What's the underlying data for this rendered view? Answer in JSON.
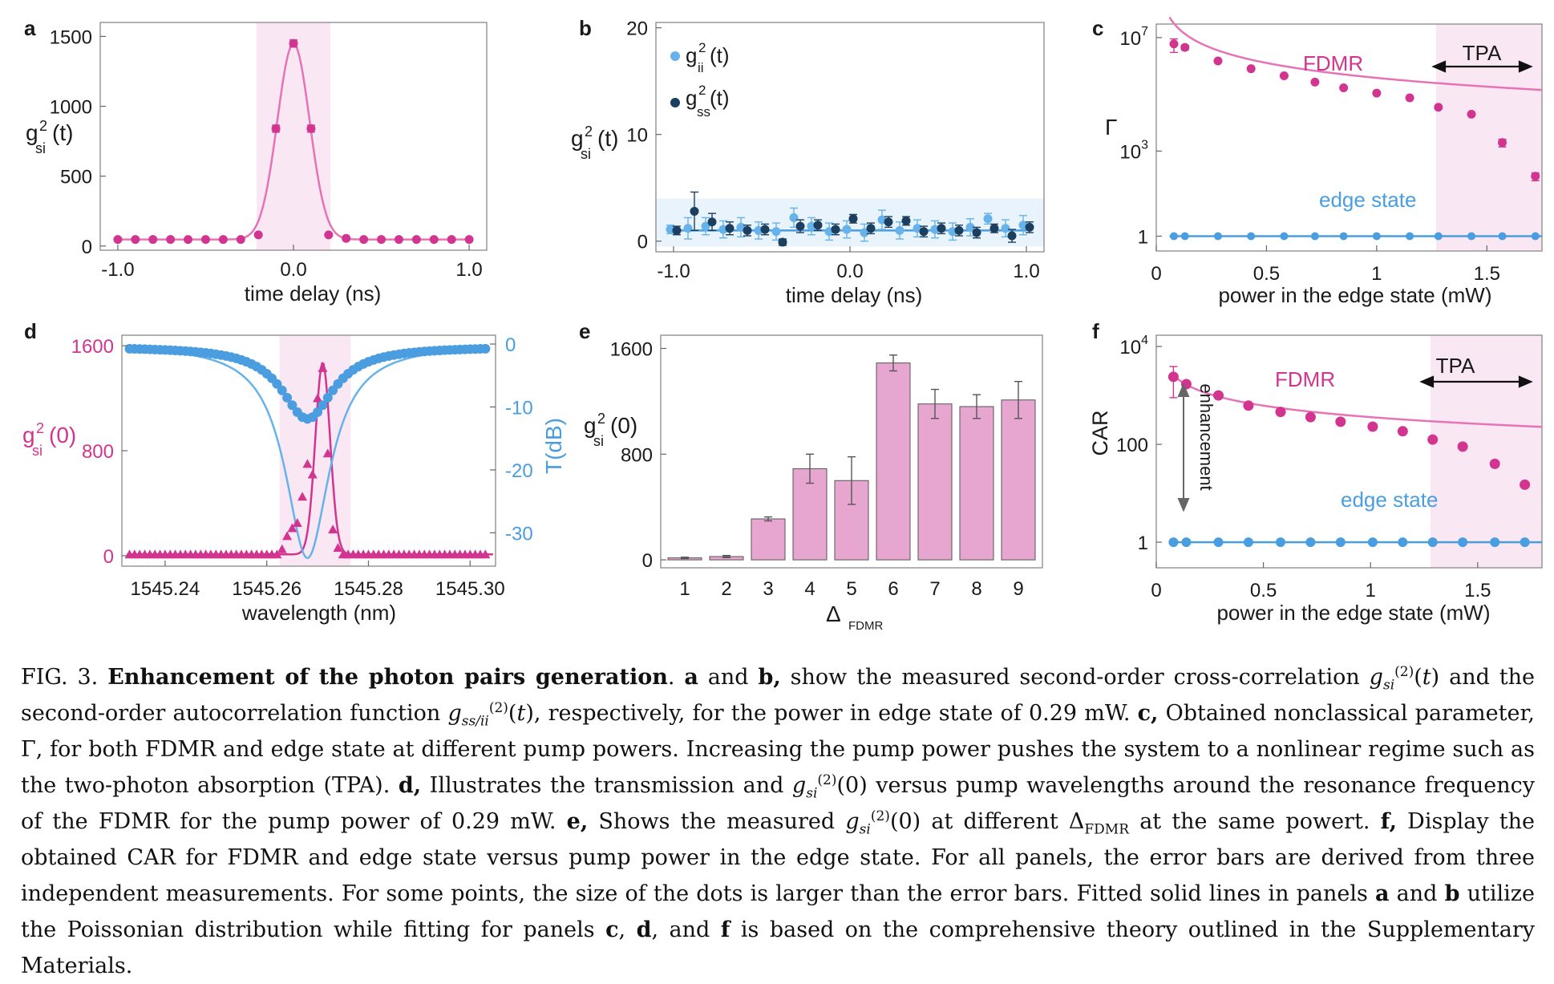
{
  "colors": {
    "magenta": "#d1358f",
    "magenta_light": "#e573b5",
    "blue": "#4a9ee0",
    "blue_light": "#66b2ea",
    "navy": "#1c3f5f",
    "band_pink": "#f9e7f3",
    "band_blue": "#e9f3fb",
    "bar_fill": "#e6a6cf"
  },
  "caption": {
    "fig_label": "FIG. 3.",
    "title": "Enhancement of the photon pairs generation",
    "text": ". a and b, show the measured second-order cross-correlation g_si^(2)(t) and the second-order autocorrelation function g_ss/ii^(2)(t), respectively, for the power in edge state of 0.29 mW. c, Obtained nonclassical parameter, Γ, for both FDMR and edge state at different pump powers. Increasing the pump power pushes the system to a nonlinear regime such as the two-photon absorption (TPA). d, Illustrates the transmission and g_si^(2)(0) versus pump wavelengths around the resonance frequency of the FDMR for the pump power of 0.29 mW. e, Shows the measured g_si^(2)(0) at different Δ_FDMR at the same powert. f, Display the obtained CAR for FDMR and edge state versus pump power in the edge state. For all panels, the error bars are derived from three independent measurements. For some points, the size of the dots is larger than the error bars. Fitted solid lines in panels a and b utilize the Poissonian distribution while fitting for panels c, d, and f is based on the comprehensive theory outlined in the Supplementary Materials."
  },
  "chart_data": [
    {
      "panel": "a",
      "type": "scatter",
      "xlabel": "time delay (ns)",
      "ylabel": "g_si^2(t)",
      "xlim": [
        -1.1,
        1.1
      ],
      "ylim": [
        -30,
        1600
      ],
      "xticks": [
        -1.0,
        0.0,
        1.0
      ],
      "xtick_labels": [
        "-1.0",
        "0.0",
        "1.0"
      ],
      "yticks": [
        0,
        500,
        1000,
        1500
      ],
      "ytick_labels": [
        "0",
        "500",
        "1000",
        "1500"
      ],
      "shaded_band": [
        -0.21,
        0.21
      ],
      "series": [
        {
          "x": [
            -1.0,
            -0.9,
            -0.8,
            -0.7,
            -0.6,
            -0.5,
            -0.4,
            -0.3,
            -0.2,
            -0.1,
            0.0,
            0.1,
            0.2,
            0.3,
            0.4,
            0.5,
            0.6,
            0.7,
            0.8,
            0.9,
            1.0
          ],
          "y": [
            47,
            47,
            47,
            47,
            47,
            47,
            47,
            47,
            80,
            840,
            1450,
            840,
            80,
            55,
            47,
            47,
            47,
            47,
            47,
            47,
            47
          ],
          "err": [
            0,
            0,
            0,
            0,
            0,
            0,
            0,
            0,
            0,
            25,
            25,
            25,
            0,
            0,
            0,
            0,
            0,
            0,
            0,
            0,
            0
          ]
        }
      ],
      "fit": {
        "model": "gaussian",
        "baseline": 47,
        "amplitude": 1400,
        "center": 0,
        "sigma": 0.092
      }
    },
    {
      "panel": "b",
      "type": "scatter",
      "xlabel": "time delay (ns)",
      "ylabel": "g_si^2(t)",
      "xlim": [
        -1.1,
        1.1
      ],
      "ylim": [
        -1,
        20.5
      ],
      "xticks": [
        -1.0,
        0.0,
        1.0
      ],
      "xtick_labels": [
        "-1.0",
        "0.0",
        "1.0"
      ],
      "yticks": [
        0,
        10,
        20
      ],
      "ytick_labels": [
        "0",
        "10",
        "20"
      ],
      "shaded_band_y": [
        -0.5,
        4.0
      ],
      "legend": [
        "g_ii^2(t)",
        "g_ss^2(t)"
      ],
      "series": [
        {
          "name": "g_ii^2(t)",
          "x": [
            -1.0,
            -0.9,
            -0.8,
            -0.7,
            -0.6,
            -0.5,
            -0.4,
            -0.3,
            -0.2,
            -0.1,
            0.0,
            0.1,
            0.2,
            0.3,
            0.4,
            0.5,
            0.6,
            0.7,
            0.8,
            0.9,
            1.0
          ],
          "y": [
            1.1,
            1.2,
            1.4,
            1.1,
            1.3,
            1.0,
            0.9,
            2.2,
            1.4,
            0.9,
            1.1,
            0.8,
            2.0,
            1.0,
            1.2,
            1.1,
            0.9,
            1.3,
            2.1,
            1.2,
            1.5
          ],
          "err": [
            0.4,
            1.0,
            0.8,
            0.8,
            0.9,
            0.8,
            0.8,
            0.9,
            0.8,
            0.8,
            0.8,
            0.8,
            0.9,
            0.8,
            0.8,
            0.8,
            0.8,
            0.8,
            0.5,
            0.8,
            0.9
          ]
        },
        {
          "name": "g_ss^2(t)",
          "x": [
            -1.0,
            -0.9,
            -0.8,
            -0.7,
            -0.6,
            -0.5,
            -0.4,
            -0.3,
            -0.2,
            -0.1,
            0.0,
            0.1,
            0.2,
            0.3,
            0.4,
            0.5,
            0.6,
            0.7,
            0.8,
            0.9,
            1.0
          ],
          "y": [
            1.0,
            2.8,
            1.8,
            1.2,
            1.0,
            1.1,
            -0.1,
            1.4,
            1.5,
            1.1,
            2.1,
            1.2,
            1.8,
            1.9,
            0.9,
            1.2,
            1.0,
            0.8,
            1.2,
            0.5,
            1.3
          ],
          "err": [
            0.4,
            1.8,
            0.8,
            0.6,
            0.5,
            0.5,
            0.3,
            0.6,
            0.5,
            0.5,
            0.4,
            0.5,
            0.5,
            0.4,
            0.5,
            0.5,
            0.5,
            0.5,
            0.4,
            0.6,
            0.5
          ]
        }
      ],
      "fit": {
        "y": 1.0
      }
    },
    {
      "panel": "c",
      "type": "scatter",
      "yscale": "log",
      "xlabel": "power in the edge state (mW)",
      "ylabel": "Γ",
      "xlim": [
        0,
        1.75
      ],
      "ylim": [
        0.3,
        30000000
      ],
      "xticks": [
        0,
        0.5,
        1,
        1.5
      ],
      "xtick_labels": [
        "0",
        "0.5",
        "1",
        "1.5"
      ],
      "yticks": [
        1,
        1000,
        10000000
      ],
      "ytick_labels": [
        "1",
        "10^3",
        "10^7"
      ],
      "shaded_band": [
        1.27,
        1.75
      ],
      "annotations": [
        "FDMR",
        "edge state",
        "TPA"
      ],
      "series": [
        {
          "name": "FDMR",
          "x": [
            0.08,
            0.13,
            0.28,
            0.43,
            0.58,
            0.72,
            0.85,
            1.0,
            1.15,
            1.28,
            1.43,
            1.57,
            1.72
          ],
          "y": [
            6000000,
            4500000,
            1500000,
            800000,
            450000,
            270000,
            170000,
            110000,
            75000,
            35000,
            20000,
            2000,
            130
          ],
          "err": [
            3000000,
            800000,
            0,
            0,
            0,
            0,
            0,
            0,
            0,
            0,
            0,
            600,
            40
          ]
        },
        {
          "name": "edge state",
          "x": [
            0.08,
            0.13,
            0.28,
            0.43,
            0.58,
            0.72,
            0.85,
            1.0,
            1.15,
            1.28,
            1.43,
            1.57,
            1.72
          ],
          "y": [
            1,
            1,
            1,
            1,
            1,
            1,
            1,
            1,
            1,
            1,
            1,
            1,
            1
          ]
        }
      ],
      "fit": [
        {
          "name": "FDMR",
          "model": "power",
          "coef": 380000,
          "exp": -1.75,
          "xmin": 0.06,
          "xmax": 1.75
        },
        {
          "name": "edge state",
          "y": 1,
          "xmin": 0.06,
          "xmax": 1.75
        }
      ]
    },
    {
      "panel": "d",
      "type": "scatter",
      "xlabel": "wavelength (nm)",
      "ylabel": "g_si^2(0)",
      "ylabel_right": "T(dB)",
      "xlim": [
        1545.2315,
        1545.305
      ],
      "ylim": [
        -80,
        1680
      ],
      "ylim_right": [
        -35.3,
        1.4
      ],
      "xticks": [
        1545.24,
        1545.26,
        1545.28,
        1545.3
      ],
      "xtick_labels": [
        "1545.24",
        "1545.26",
        "1545.28",
        "1545.30"
      ],
      "yticks": [
        0,
        800,
        1600
      ],
      "ytick_labels": [
        "0",
        "800",
        "1600"
      ],
      "yticks_right": [
        0,
        -10,
        -20,
        -30
      ],
      "ytick_labels_right": [
        "0",
        "-10",
        "-20",
        "-30"
      ],
      "shaded_band": [
        1545.2625,
        1545.2765
      ],
      "g2_series": {
        "name": "g_si^2(0)",
        "x0": 1545.233,
        "dx": 0.001,
        "baseline": 10,
        "peak_points": {
          "1545.263": 50,
          "1545.264": 150,
          "1545.265": 210,
          "1545.266": 250,
          "1545.267": 450,
          "1545.268": 700,
          "1545.269": 620,
          "1545.27": 1200,
          "1545.271": 1430,
          "1545.272": 780,
          "1545.273": 200,
          "1545.274": 60
        }
      },
      "fit_g2": {
        "model": "gaussian",
        "baseline": 10,
        "amplitude": 1460,
        "center": 1545.271,
        "sigma": 0.00145
      },
      "transmission": {
        "name": "T(dB)",
        "model": "lorentzian",
        "center": 1545.268,
        "gamma": 0.0062,
        "depth": -11.5
      },
      "fit_T": {
        "model": "lorentzian",
        "center": 1545.268,
        "gamma": 0.0053,
        "depth": -34
      }
    },
    {
      "panel": "e",
      "type": "bar",
      "xlabel": "Δ_FDMR",
      "ylabel": "g_si^2(0)",
      "categories": [
        "1",
        "2",
        "3",
        "4",
        "5",
        "6",
        "7",
        "8",
        "9"
      ],
      "values": [
        15,
        25,
        310,
        690,
        600,
        1490,
        1180,
        1160,
        1210
      ],
      "err": [
        5,
        8,
        15,
        110,
        180,
        60,
        110,
        90,
        140
      ],
      "ylim": [
        -60,
        1700
      ],
      "yticks": [
        0,
        800,
        1600
      ],
      "ytick_labels": [
        "0",
        "800",
        "1600"
      ]
    },
    {
      "panel": "f",
      "type": "scatter",
      "yscale": "log",
      "xlabel": "power in the edge state (mW)",
      "ylabel": "CAR",
      "xlim": [
        0,
        1.8
      ],
      "ylim": [
        0.3,
        17000
      ],
      "xticks": [
        0,
        0.5,
        1,
        1.5
      ],
      "xtick_labels": [
        "0",
        "0.5",
        "1",
        "1.5"
      ],
      "yticks": [
        1,
        100,
        10000
      ],
      "ytick_labels": [
        "1",
        "100",
        "10^4"
      ],
      "shaded_band": [
        1.28,
        1.8
      ],
      "annotations": [
        "FDMR",
        "enhancement",
        "edge state",
        "TPA"
      ],
      "series": [
        {
          "name": "FDMR",
          "x": [
            0.08,
            0.14,
            0.29,
            0.43,
            0.58,
            0.72,
            0.86,
            1.01,
            1.15,
            1.29,
            1.43,
            1.58,
            1.72
          ],
          "y": [
            2400,
            1700,
            1000,
            620,
            460,
            360,
            290,
            230,
            185,
            125,
            90,
            40,
            15
          ],
          "err": [
            1500,
            0,
            0,
            0,
            0,
            0,
            0,
            0,
            0,
            0,
            0,
            0,
            0
          ]
        },
        {
          "name": "edge state",
          "x": [
            0.08,
            0.14,
            0.29,
            0.43,
            0.58,
            0.72,
            0.86,
            1.01,
            1.15,
            1.29,
            1.43,
            1.58,
            1.72
          ],
          "y": [
            1,
            1,
            1,
            1,
            1,
            1,
            1,
            1,
            1,
            1,
            1,
            1,
            1
          ]
        }
      ],
      "fit": [
        {
          "name": "FDMR",
          "model": "power",
          "coef": 360,
          "exp": -0.78,
          "xmin": 0.07,
          "xmax": 1.8
        },
        {
          "name": "edge state",
          "y": 1,
          "xmin": 0.07,
          "xmax": 1.8
        }
      ]
    }
  ]
}
